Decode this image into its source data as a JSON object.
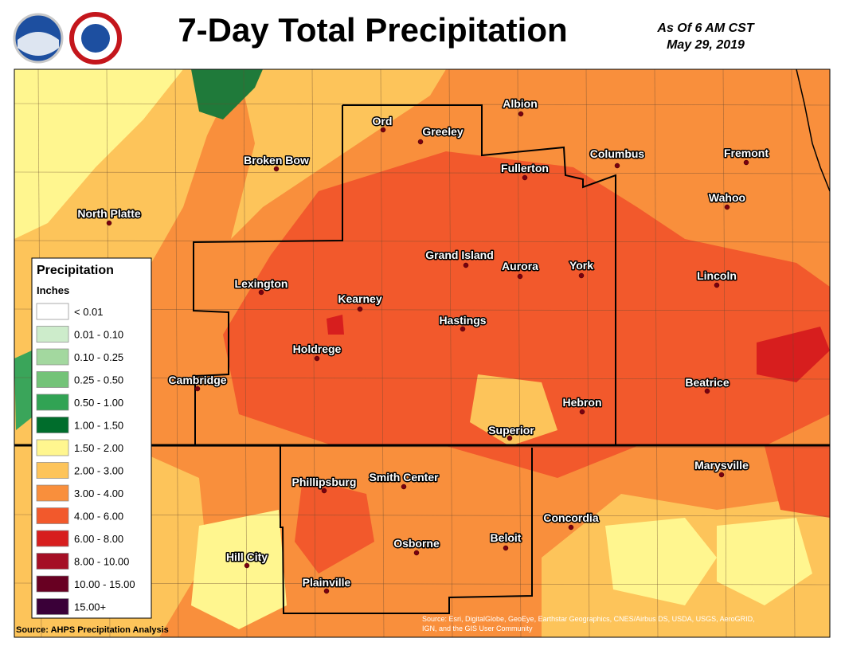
{
  "header": {
    "title": "7-Day Total Precipitation",
    "as_of": "As Of 6 AM CST",
    "date": "May 29, 2019"
  },
  "cities": [
    "Ord",
    "Greeley",
    "Albion",
    "Broken Bow",
    "Fullerton",
    "Columbus",
    "Fremont",
    "North Platte",
    "Wahoo",
    "Grand Island",
    "Aurora",
    "York",
    "Lincoln",
    "Lexington",
    "Kearney",
    "Hastings",
    "Holdrege",
    "Cambridge",
    "Beatrice",
    "Hebron",
    "Superior",
    "Marysville",
    "Phillipsburg",
    "Smith Center",
    "Concordia",
    "Beloit",
    "Osborne",
    "Hill City",
    "Plainville"
  ],
  "legend": {
    "title": "Precipitation",
    "units": "Inches",
    "items": [
      {
        "label": "< 0.01",
        "color": "#ffffff"
      },
      {
        "label": "0.01 - 0.10",
        "color": "#cdeccb"
      },
      {
        "label": "0.10 - 0.25",
        "color": "#a3d89f"
      },
      {
        "label": "0.25 - 0.50",
        "color": "#73c378"
      },
      {
        "label": "0.50 - 1.00",
        "color": "#31a354"
      },
      {
        "label": "1.00 - 1.50",
        "color": "#006d2c"
      },
      {
        "label": "1.50 - 2.00",
        "color": "#fff68f"
      },
      {
        "label": "2.00 - 3.00",
        "color": "#fdc45a"
      },
      {
        "label": "3.00 - 4.00",
        "color": "#f98f3c"
      },
      {
        "label": "4.00 - 6.00",
        "color": "#f2592c"
      },
      {
        "label": "6.00 - 8.00",
        "color": "#d71e1e"
      },
      {
        "label": "8.00 - 10.00",
        "color": "#a50f25"
      },
      {
        "label": "10.00 - 15.00",
        "color": "#680022"
      },
      {
        "label": "15.00+",
        "color": "#3a0038"
      }
    ]
  },
  "source": "Source: AHPS Precipitation Analysis",
  "credits": [
    "Source: Esri, DigitalGlobe, GeoEye, Earthstar Geographics, CNES/Airbus DS, USDA, USGS, AeroGRID,",
    "IGN, and the GIS User Community"
  ]
}
